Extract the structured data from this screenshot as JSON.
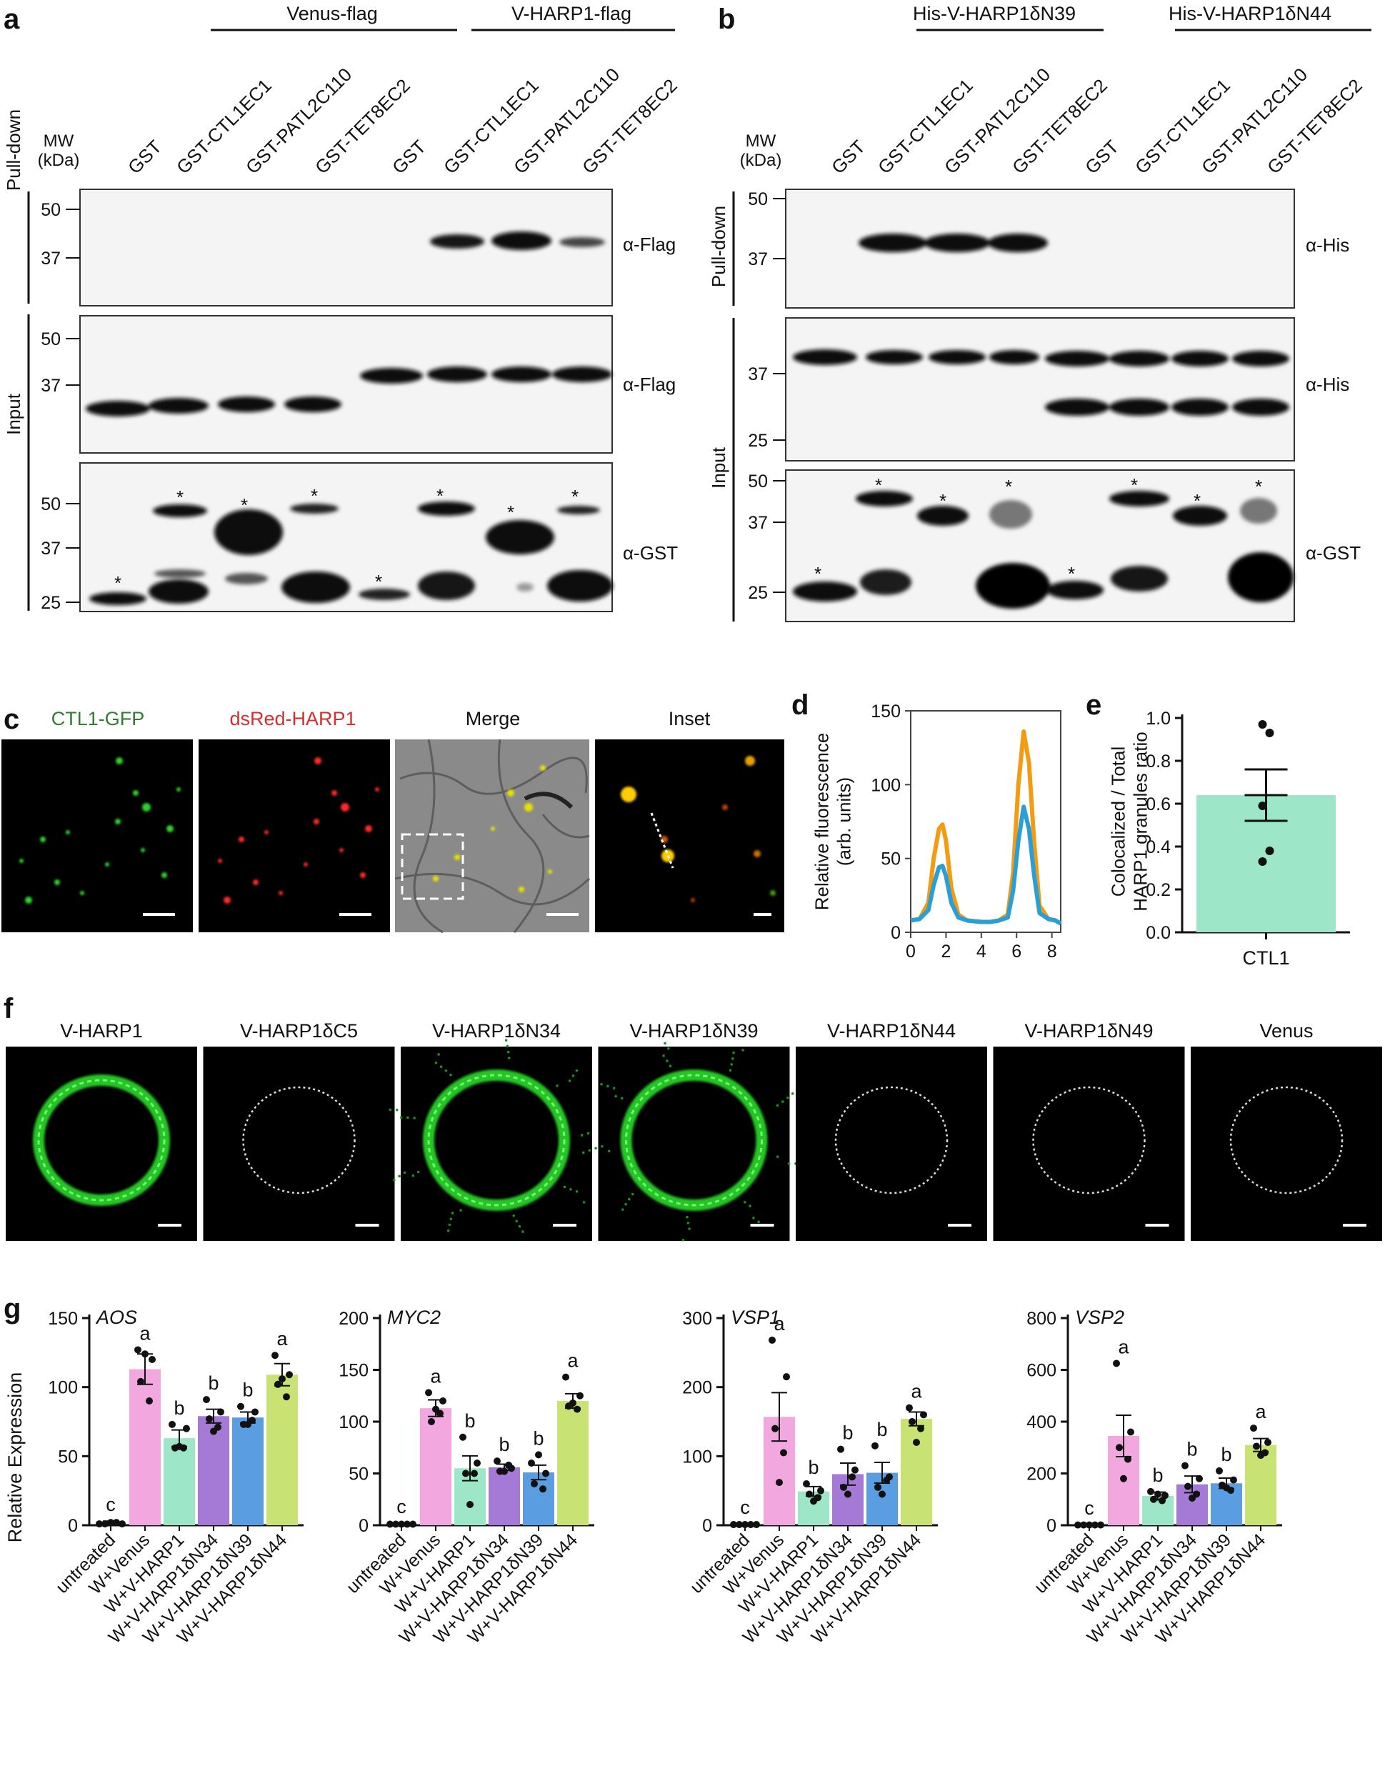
{
  "panel_letters": [
    "a",
    "b",
    "c",
    "d",
    "e",
    "f",
    "g"
  ],
  "panel_a": {
    "groups": [
      "Venus-flag",
      "V-HARP1-flag"
    ],
    "mw_label": [
      "MW",
      "(kDa)"
    ],
    "lanes": [
      "GST",
      "GST-CTL1EC1",
      "GST-PATL2C110",
      "GST-TET8EC2",
      "GST",
      "GST-CTL1EC1",
      "GST-PATL2C110",
      "GST-TET8EC2"
    ],
    "side_labels": [
      "Pull-down",
      "Input"
    ],
    "blot1": {
      "antibody": "α-Flag",
      "markers": [
        "50",
        "37"
      ]
    },
    "blot2": {
      "antibody": "α-Flag",
      "markers": [
        "50",
        "37"
      ]
    },
    "blot3": {
      "antibody": "α-GST",
      "markers": [
        "50",
        "37",
        "25"
      ]
    }
  },
  "panel_b": {
    "groups": [
      "His-V-HARP1δN39",
      "His-V-HARP1δN44"
    ],
    "mw_label": [
      "MW",
      "(kDa)"
    ],
    "lanes": [
      "GST",
      "GST-CTL1EC1",
      "GST-PATL2C110",
      "GST-TET8EC2",
      "GST",
      "GST-CTL1EC1",
      "GST-PATL2C110",
      "GST-TET8EC2"
    ],
    "side_labels": [
      "Pull-down",
      "Input"
    ],
    "blot1": {
      "antibody": "α-His",
      "markers": [
        "50",
        "37"
      ]
    },
    "blot2": {
      "antibody": "α-His",
      "markers": [
        "37",
        "25"
      ]
    },
    "blot3": {
      "antibody": "α-GST",
      "markers": [
        "50",
        "37",
        "25"
      ]
    }
  },
  "panel_c": {
    "labels": [
      "CTL1-GFP",
      "dsRed-HARP1",
      "Merge",
      "Inset"
    ],
    "label_colors": [
      "#2e7d32",
      "#d32f2f",
      "#111111",
      "#111111"
    ]
  },
  "panel_d": {
    "chart_data": {
      "type": "line",
      "ylabel": "Relative fluorescence\n(arb. units)",
      "xticks": [
        "0",
        "2",
        "4",
        "6",
        "8"
      ],
      "yticks": [
        "0",
        "50",
        "100",
        "150"
      ],
      "xlim": [
        0,
        8.5
      ],
      "ylim": [
        0,
        150
      ],
      "series": [
        {
          "color": "#f39c12",
          "x": [
            0,
            0.5,
            1,
            1.3,
            1.6,
            1.8,
            2.0,
            2.3,
            2.7,
            3.2,
            4,
            4.5,
            5,
            5.5,
            5.8,
            6.1,
            6.4,
            6.7,
            7.0,
            7.3,
            7.8,
            8.2,
            8.5
          ],
          "y": [
            8,
            9,
            20,
            50,
            70,
            73,
            62,
            30,
            12,
            8,
            7,
            7,
            8,
            12,
            40,
            100,
            136,
            115,
            60,
            18,
            9,
            8,
            6
          ]
        },
        {
          "color": "#2a9fd6",
          "x": [
            0,
            0.5,
            1,
            1.3,
            1.6,
            1.8,
            2.0,
            2.3,
            2.7,
            3.2,
            4,
            4.5,
            5,
            5.5,
            5.8,
            6.1,
            6.4,
            6.7,
            7.0,
            7.3,
            7.8,
            8.2,
            8.5
          ],
          "y": [
            8,
            9,
            15,
            32,
            44,
            45,
            38,
            20,
            10,
            8,
            7,
            7,
            8,
            10,
            28,
            62,
            85,
            70,
            38,
            13,
            9,
            8,
            6
          ]
        }
      ]
    }
  },
  "panel_e": {
    "chart_data": {
      "type": "bar",
      "categories": [
        "CTL1"
      ],
      "values": [
        0.64
      ],
      "error": [
        0.12
      ],
      "points": [
        0.97,
        0.93,
        0.59,
        0.38,
        0.33
      ],
      "ylabel": "Colocalized / Total\nHARP1 granules ratio",
      "yticks": [
        "0.0",
        "0.2",
        "0.4",
        "0.6",
        "0.8",
        "1.0"
      ],
      "ylim": [
        0,
        1.0
      ],
      "color": "#9de6c8"
    }
  },
  "panel_f": {
    "labels": [
      "V-HARP1",
      "V-HARP1δC5",
      "V-HARP1δN34",
      "V-HARP1δN39",
      "V-HARP1δN44",
      "V-HARP1δN49",
      "Venus"
    ]
  },
  "panel_g": {
    "ylabel": "Relative Expression",
    "categories": [
      "untreated",
      "W+Venus",
      "W+V-HARP1",
      "W+V-HARP1δN34",
      "W+V-HARP1δN39",
      "W+V-HARP1δN44"
    ],
    "colors": [
      "#ffffff",
      "#f2a7de",
      "#9de6c8",
      "#a47ad6",
      "#5a9de0",
      "#c8e373"
    ],
    "chart_data": [
      {
        "type": "bar",
        "title": "AOS",
        "ylim": [
          0,
          150
        ],
        "yticks": [
          "0",
          "50",
          "100",
          "150"
        ],
        "values": [
          2,
          113,
          63,
          79,
          78,
          109
        ],
        "errors": [
          1,
          11,
          6,
          5,
          4,
          8
        ],
        "letters": [
          "c",
          "a",
          "b",
          "b",
          "b",
          "a"
        ],
        "points": [
          [
            1,
            1,
            2,
            2,
            1
          ],
          [
            127,
            120,
            104,
            90,
            124
          ],
          [
            73,
            70,
            56,
            56,
            57
          ],
          [
            91,
            82,
            77,
            71,
            68
          ],
          [
            86,
            82,
            73,
            76,
            73
          ],
          [
            123,
            109,
            102,
            93,
            106
          ]
        ]
      },
      {
        "type": "bar",
        "title": "MYC2",
        "ylim": [
          0,
          200
        ],
        "yticks": [
          "0",
          "50",
          "100",
          "150",
          "200"
        ],
        "values": [
          1,
          113,
          55,
          56,
          51,
          120
        ],
        "errors": [
          1,
          8,
          12,
          3,
          7,
          7
        ],
        "letters": [
          "c",
          "a",
          "b",
          "b",
          "b",
          "a"
        ],
        "points": [
          [
            1,
            1,
            1,
            1,
            1
          ],
          [
            128,
            120,
            100,
            108,
            112
          ],
          [
            85,
            60,
            50,
            50,
            20
          ],
          [
            62,
            55,
            52,
            58,
            52
          ],
          [
            60,
            50,
            40,
            35,
            68
          ],
          [
            143,
            125,
            115,
            112,
            118
          ]
        ]
      },
      {
        "type": "bar",
        "title": "VSP1",
        "ylim": [
          0,
          300
        ],
        "yticks": [
          "0",
          "100",
          "200",
          "300"
        ],
        "values": [
          1,
          157,
          49,
          74,
          76,
          154
        ],
        "errors": [
          1,
          35,
          7,
          16,
          15,
          10
        ],
        "letters": [
          "c",
          "a",
          "b",
          "b",
          "b",
          "a"
        ],
        "points": [
          [
            1,
            1,
            1,
            1,
            1
          ],
          [
            268,
            215,
            140,
            105,
            62
          ],
          [
            60,
            50,
            45,
            40,
            35
          ],
          [
            110,
            80,
            55,
            70,
            45
          ],
          [
            115,
            70,
            55,
            65,
            45
          ],
          [
            170,
            160,
            150,
            140,
            120
          ]
        ]
      },
      {
        "type": "bar",
        "title": "VSP2",
        "ylim": [
          0,
          800
        ],
        "yticks": [
          "0",
          "200",
          "400",
          "600",
          "800"
        ],
        "values": [
          2,
          345,
          113,
          158,
          162,
          310
        ],
        "errors": [
          1,
          80,
          15,
          32,
          20,
          25
        ],
        "letters": [
          "c",
          "a",
          "b",
          "b",
          "b",
          "a"
        ],
        "points": [
          [
            1,
            1,
            1,
            1,
            1
          ],
          [
            625,
            360,
            300,
            255,
            180
          ],
          [
            130,
            115,
            100,
            95,
            120
          ],
          [
            230,
            180,
            150,
            120,
            105
          ],
          [
            210,
            175,
            155,
            135,
            145
          ],
          [
            375,
            320,
            305,
            280,
            270
          ]
        ]
      }
    ]
  }
}
